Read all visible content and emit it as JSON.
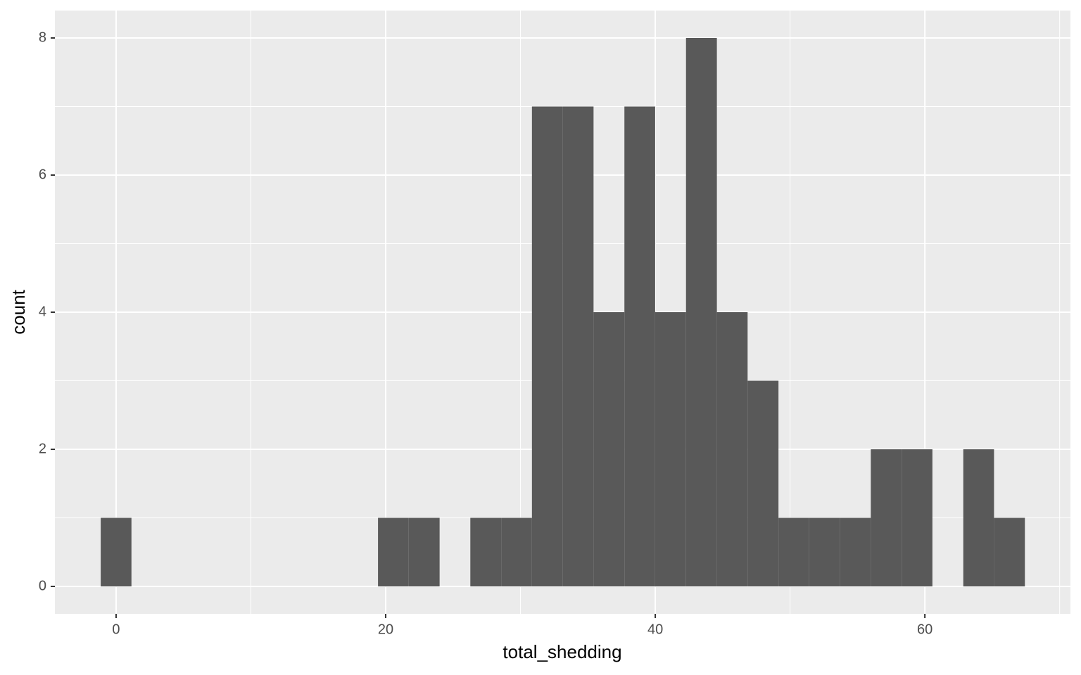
{
  "chart_data": {
    "type": "histogram",
    "x_label": "total_shedding",
    "y_label": "count",
    "bins": [
      -1.14,
      1.14,
      3.43,
      5.71,
      8.0,
      10.28,
      12.57,
      14.86,
      17.14,
      19.43,
      21.71,
      24.0,
      26.28,
      28.57,
      30.85,
      33.14,
      35.42,
      37.71,
      39.99,
      42.28,
      44.57,
      46.85,
      49.14,
      51.42,
      53.71,
      55.99,
      58.28,
      60.56,
      62.85,
      65.13,
      67.42
    ],
    "values": [
      1,
      0,
      0,
      0,
      0,
      0,
      0,
      0,
      0,
      1,
      1,
      0,
      1,
      1,
      7,
      7,
      4,
      7,
      4,
      8,
      4,
      3,
      1,
      1,
      1,
      2,
      2,
      0,
      2,
      1
    ],
    "color": "#595959",
    "xlim": [
      -4.54,
      70.8
    ],
    "ylim": [
      -0.4,
      8.4
    ],
    "xticks": [
      0,
      20,
      40,
      60
    ],
    "yticks": [
      0,
      2,
      4,
      6,
      8
    ],
    "x_minor_breaks": [
      10,
      30,
      50,
      70
    ],
    "y_minor_breaks": [
      1,
      3,
      5,
      7
    ],
    "grid": true
  }
}
